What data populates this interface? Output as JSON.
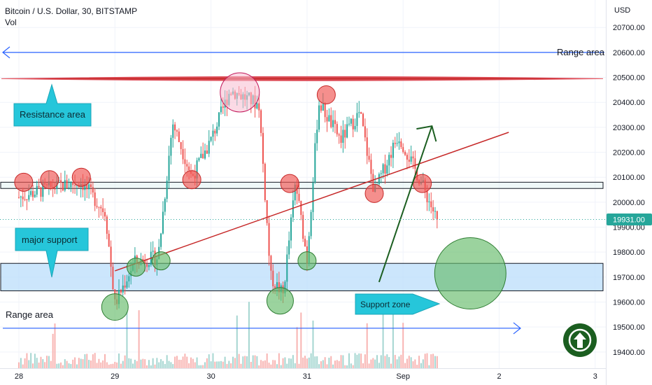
{
  "header": {
    "title": "Bitcoin / U.S. Dollar, 30, BITSTAMP",
    "indicator": "Vol"
  },
  "price_axis": {
    "currency": "USD",
    "current_price": "19931.00"
  },
  "annotations": {
    "range_area_top": "Range area",
    "range_area_bottom": "Range area",
    "resistance": "Resistance area",
    "major_support": "major support",
    "support_zone": "Support zone"
  },
  "colors": {
    "up": "#26a69a",
    "down": "#ef5350",
    "resistance_line": "#e0525e",
    "trend_line": "#c62828",
    "range_arrow": "#2962ff",
    "callout": "#26c6da",
    "projection_arrow": "#1b5e20",
    "badge": "#1b5e20"
  },
  "chart_data": {
    "type": "candlestick",
    "title": "Bitcoin / U.S. Dollar, 30, BITSTAMP",
    "xlabel": "",
    "ylabel": "USD",
    "x_ticks": [
      "28",
      "29",
      "30",
      "31",
      "Sep",
      "2",
      "3"
    ],
    "y_ticks": [
      19400,
      19500,
      19600,
      19700,
      19800,
      19900,
      20000,
      20100,
      20200,
      20300,
      20400,
      20500,
      20600,
      20700
    ],
    "ylim": [
      19335,
      20810
    ],
    "current_price": 19931,
    "levels": {
      "resistance": 20495,
      "range_top": 20600,
      "range_bottom": 19495,
      "support_zone": [
        19645,
        19755
      ],
      "mid_box": [
        20055,
        20080
      ]
    },
    "trend_line": {
      "from": {
        "day": 29.0,
        "price": 19725
      },
      "to": {
        "day": 33.1,
        "price": 20280
      }
    },
    "projection": {
      "from": {
        "day": 31.75,
        "price": 19680
      },
      "to": {
        "day": 32.3,
        "price": 20305
      }
    },
    "path_key_points": [
      {
        "day": 28.0,
        "price": 20020
      },
      {
        "day": 28.35,
        "price": 20060
      },
      {
        "day": 28.65,
        "price": 20080
      },
      {
        "day": 28.9,
        "price": 19960
      },
      {
        "day": 29.0,
        "price": 19590
      },
      {
        "day": 29.2,
        "price": 19760
      },
      {
        "day": 29.45,
        "price": 19780
      },
      {
        "day": 29.6,
        "price": 20320
      },
      {
        "day": 29.8,
        "price": 20100
      },
      {
        "day": 30.0,
        "price": 20250
      },
      {
        "day": 30.2,
        "price": 20450
      },
      {
        "day": 30.5,
        "price": 20390
      },
      {
        "day": 30.62,
        "price": 19700
      },
      {
        "day": 30.75,
        "price": 19630
      },
      {
        "day": 30.88,
        "price": 20080
      },
      {
        "day": 31.0,
        "price": 19770
      },
      {
        "day": 31.12,
        "price": 20400
      },
      {
        "day": 31.35,
        "price": 20250
      },
      {
        "day": 31.55,
        "price": 20360
      },
      {
        "day": 31.7,
        "price": 20040
      },
      {
        "day": 31.95,
        "price": 20270
      },
      {
        "day": 32.2,
        "price": 20070
      },
      {
        "day": 32.35,
        "price": 19931
      }
    ],
    "circles": [
      {
        "day": 28.05,
        "price": 20080,
        "color": "red"
      },
      {
        "day": 28.32,
        "price": 20090,
        "color": "red"
      },
      {
        "day": 28.65,
        "price": 20100,
        "color": "red"
      },
      {
        "day": 29.0,
        "price": 19580,
        "color": "green"
      },
      {
        "day": 29.22,
        "price": 19740,
        "color": "green"
      },
      {
        "day": 29.48,
        "price": 19765,
        "color": "green"
      },
      {
        "day": 29.8,
        "price": 20090,
        "color": "red"
      },
      {
        "day": 30.3,
        "price": 20440,
        "color": "pink"
      },
      {
        "day": 30.72,
        "price": 19605,
        "color": "green"
      },
      {
        "day": 30.82,
        "price": 20075,
        "color": "red"
      },
      {
        "day": 31.0,
        "price": 19765,
        "color": "green"
      },
      {
        "day": 31.2,
        "price": 20430,
        "color": "red"
      },
      {
        "day": 31.7,
        "price": 20035,
        "color": "red"
      },
      {
        "day": 32.2,
        "price": 20075,
        "color": "red"
      },
      {
        "day": 32.7,
        "price": 19715,
        "color": "green"
      }
    ]
  }
}
